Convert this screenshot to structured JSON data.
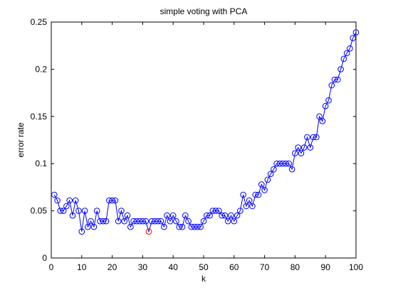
{
  "chart_data": {
    "type": "line",
    "title": "simple voting with PCA",
    "xlabel": "k",
    "ylabel": "error rate",
    "xlim": [
      0,
      100
    ],
    "ylim": [
      0,
      0.25
    ],
    "xticks": [
      0,
      10,
      20,
      30,
      40,
      50,
      60,
      70,
      80,
      90,
      100
    ],
    "yticks": [
      0,
      0.05,
      0.1,
      0.15,
      0.2,
      0.25
    ],
    "ytick_labels": [
      "0",
      "0.05",
      "0.1",
      "0.15",
      "0.2",
      "0.25"
    ],
    "grid": false,
    "legend": "none",
    "line_color": "#0000ff",
    "marker": "circle",
    "series": [
      {
        "x": [
          1,
          2,
          3,
          4,
          5,
          6,
          7,
          8,
          9,
          10,
          11,
          12,
          13,
          14,
          15,
          16,
          17,
          18,
          19,
          20,
          21,
          22,
          23,
          24,
          25,
          26,
          27,
          28,
          29,
          30,
          31,
          32,
          33,
          34,
          35,
          36,
          37,
          38,
          39,
          40,
          41,
          42,
          43,
          44,
          45,
          46,
          47,
          48,
          49,
          50,
          51,
          52,
          53,
          54,
          55,
          56,
          57,
          58,
          59,
          60,
          61,
          62,
          63,
          64,
          65,
          66,
          67,
          68,
          69,
          70,
          71,
          72,
          73,
          74,
          75,
          76,
          77,
          78,
          79,
          80,
          81,
          82,
          83,
          84,
          85,
          86,
          87,
          88,
          89,
          90,
          91,
          92,
          93,
          94,
          95,
          96,
          97,
          98,
          99,
          100
        ],
        "y": [
          0.067,
          0.061,
          0.05,
          0.05,
          0.055,
          0.061,
          0.045,
          0.061,
          0.05,
          0.028,
          0.05,
          0.033,
          0.039,
          0.033,
          0.05,
          0.039,
          0.039,
          0.039,
          0.061,
          0.061,
          0.061,
          0.039,
          0.05,
          0.039,
          0.045,
          0.033,
          0.039,
          0.039,
          0.039,
          0.039,
          0.039,
          0.028,
          0.039,
          0.039,
          0.039,
          0.039,
          0.033,
          0.045,
          0.039,
          0.045,
          0.039,
          0.033,
          0.033,
          0.045,
          0.039,
          0.033,
          0.033,
          0.033,
          0.033,
          0.039,
          0.045,
          0.045,
          0.05,
          0.05,
          0.05,
          0.045,
          0.045,
          0.039,
          0.045,
          0.039,
          0.045,
          0.05,
          0.067,
          0.055,
          0.061,
          0.055,
          0.067,
          0.067,
          0.078,
          0.072,
          0.083,
          0.089,
          0.094,
          0.1,
          0.1,
          0.1,
          0.1,
          0.1,
          0.094,
          0.111,
          0.117,
          0.111,
          0.117,
          0.128,
          0.117,
          0.128,
          0.128,
          0.15,
          0.145,
          0.161,
          0.167,
          0.183,
          0.189,
          0.189,
          0.2,
          0.211,
          0.217,
          0.222,
          0.233,
          0.239
        ]
      }
    ],
    "highlight": {
      "x": 32,
      "y": 0.028,
      "color": "#ff0000"
    }
  }
}
